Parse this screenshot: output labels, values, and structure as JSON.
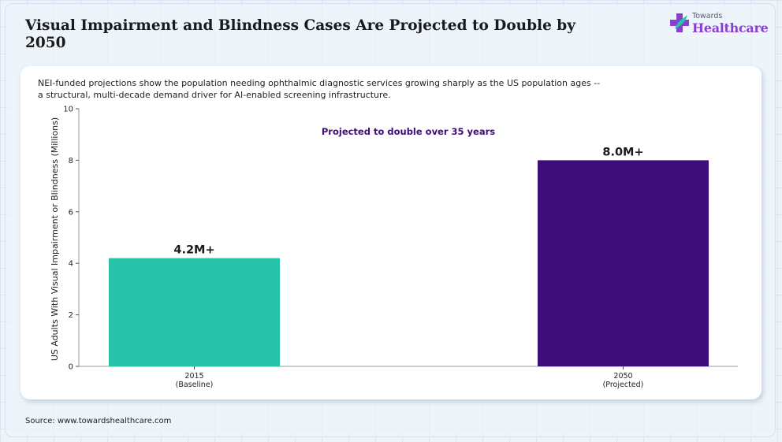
{
  "header": {
    "title": "Visual Impairment and Blindness Cases Are Projected to Double by 2050",
    "subtitle": "NEI-funded projections show the population needing ophthalmic diagnostic services growing sharply as the US population ages -- a structural, multi-decade demand driver for AI-enabled screening infrastructure."
  },
  "logo": {
    "small_text": "Towards",
    "big_text": "Healthcare",
    "icon": "medical-cross-icon",
    "colors": [
      "#8a3fd1",
      "#29c4a9"
    ]
  },
  "footer": {
    "source": "Source: www.towardshealthcare.com"
  },
  "chart_data": {
    "type": "bar",
    "categories": [
      "2015\n(Baseline)",
      "2050\n(Projected)"
    ],
    "values": [
      4.2,
      8.0
    ],
    "data_labels": [
      "4.2M+",
      "8.0M+"
    ],
    "colors": [
      "#26c3a9",
      "#3e0d7a"
    ],
    "ylabel": "US Adults With Visual Impairment or Blindness (Millions)",
    "xlabel": "",
    "ylim": [
      0,
      10
    ],
    "yticks": [
      0,
      2,
      4,
      6,
      8,
      10
    ],
    "annotation": {
      "text": "Projected to double over 35 years",
      "color": "#3e0d7a"
    },
    "grid": false
  }
}
